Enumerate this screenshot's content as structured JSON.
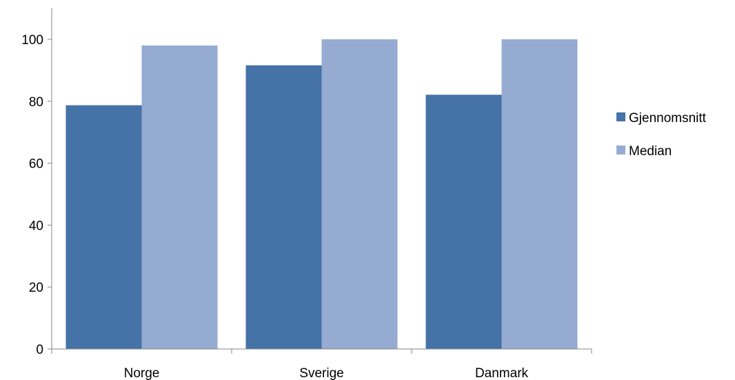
{
  "chart_data": {
    "type": "bar",
    "categories": [
      "Norge",
      "Sverige",
      "Danmark"
    ],
    "series": [
      {
        "name": "Gjennomsnitt",
        "values": [
          78.7,
          91.6,
          82.1
        ],
        "color": "#4572A7"
      },
      {
        "name": "Median",
        "values": [
          98,
          100,
          100
        ],
        "color": "#95ABD1"
      }
    ],
    "yticks": [
      "0",
      "20",
      "40",
      "60",
      "80",
      "100"
    ],
    "ylim": [
      0,
      110
    ],
    "grid": false,
    "legend_position": "right"
  }
}
